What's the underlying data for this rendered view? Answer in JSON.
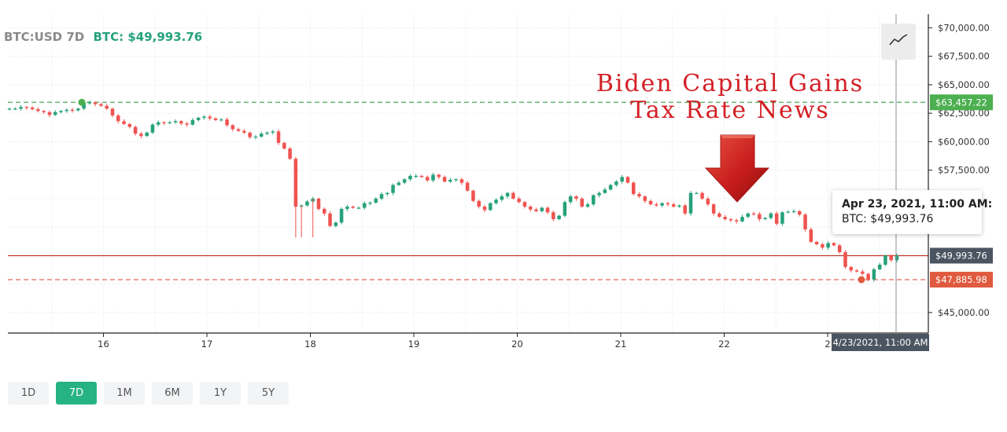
{
  "header": {
    "symbol": "BTC:USD 7D",
    "price_label": "BTC: $49,993.76"
  },
  "timeframes": {
    "items": [
      "1D",
      "7D",
      "1M",
      "6M",
      "1Y",
      "5Y"
    ],
    "active": "7D"
  },
  "chart_type_icon": "line-chart-icon",
  "annotation": {
    "line1": "Biden Capital Gains",
    "line2": "Tax Rate News",
    "color": "#d31f26",
    "arrow_icon": "red-down-arrow-icon"
  },
  "tooltip": {
    "title": "Apr 23, 2021, 11:00 AM:",
    "value": "BTC: $49,993.76"
  },
  "crosshair_label": "4/23/2021, 11:00 AM",
  "colors": {
    "up": "#26a17b",
    "down": "#ef5350",
    "high_line": "#4caf50",
    "low_line": "#e05a3f",
    "current_line": "#c0392b",
    "current_tag": "#4b5561"
  },
  "chart_data": {
    "type": "candlestick",
    "x_ticks": [
      "16",
      "17",
      "18",
      "19",
      "20",
      "21",
      "22",
      "2"
    ],
    "y_ticks": [
      "$70,000.00",
      "$67,500.00",
      "$65,000.00",
      "$62,500.00",
      "$60,000.00",
      "$57,500.00",
      "$45,000.00"
    ],
    "y_tick_values": [
      70000,
      67500,
      65000,
      62500,
      60000,
      57500,
      45000
    ],
    "ylim": [
      43200,
      71200
    ],
    "grid": true,
    "reference_lines": [
      {
        "name": "high",
        "value": 63457.22,
        "label": "$63,457.22"
      },
      {
        "name": "current",
        "value": 49993.76,
        "label": "$49,993.76"
      },
      {
        "name": "low",
        "value": 47885.98,
        "label": "$47,885.98"
      }
    ],
    "closes": [
      62900,
      62900,
      63050,
      63000,
      62850,
      62700,
      62600,
      62350,
      62600,
      62700,
      62800,
      62750,
      62900,
      63400,
      63450,
      63300,
      63150,
      62900,
      62300,
      61800,
      61550,
      61300,
      60700,
      60500,
      60800,
      61500,
      61700,
      61650,
      61700,
      61800,
      61600,
      61500,
      61900,
      62100,
      62200,
      62050,
      61900,
      61950,
      61450,
      61100,
      60950,
      60800,
      60400,
      60450,
      60700,
      60800,
      60900,
      59900,
      59400,
      58500,
      54300,
      54400,
      54750,
      55000,
      54100,
      53700,
      52600,
      52900,
      54100,
      54300,
      54200,
      54200,
      54600,
      54650,
      55000,
      55400,
      55500,
      56200,
      56400,
      56700,
      57000,
      57000,
      56900,
      56600,
      57100,
      56900,
      56500,
      56650,
      56700,
      56400,
      55700,
      54800,
      54300,
      54000,
      54600,
      54900,
      55200,
      55500,
      55000,
      54700,
      54300,
      54050,
      53900,
      54200,
      53800,
      53200,
      53500,
      54700,
      55200,
      55000,
      54300,
      54500,
      55300,
      55500,
      55800,
      56200,
      56500,
      56900,
      56400,
      55400,
      55200,
      54800,
      54500,
      54400,
      54600,
      54500,
      54300,
      54400,
      53700,
      55500,
      55500,
      55000,
      54500,
      53700,
      53400,
      53200,
      53100,
      53000,
      53400,
      53700,
      53650,
      53200,
      53300,
      53700,
      52800,
      53800,
      53850,
      53900,
      53600,
      52300,
      51200,
      51000,
      50700,
      51100,
      50900,
      50300,
      49000,
      48700,
      48600,
      48400,
      47900,
      48800,
      49200,
      50000,
      49600,
      49993.76
    ]
  }
}
